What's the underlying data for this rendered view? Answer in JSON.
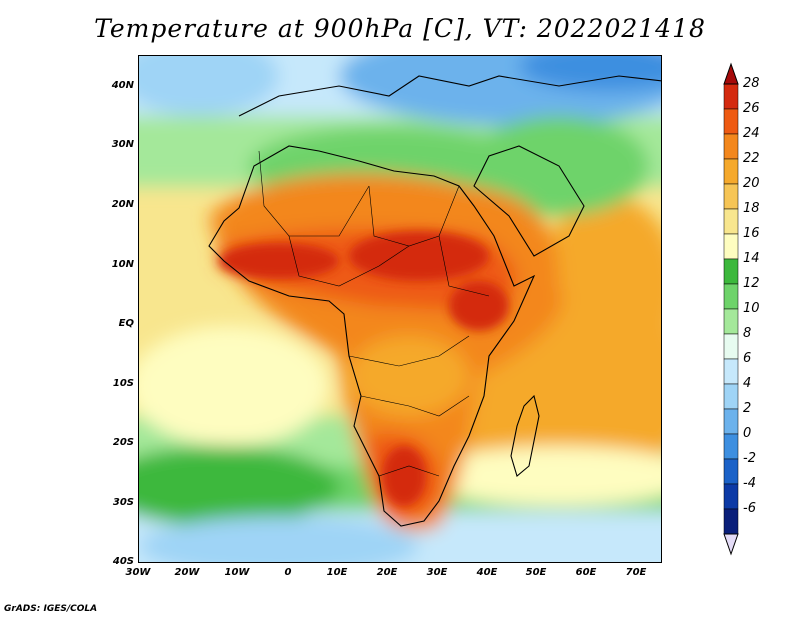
{
  "title": "Temperature at 900hPa [C], VT: 2022021418",
  "credit": "GrADS: IGES/COLA",
  "map": {
    "lat_labels": [
      "40N",
      "30N",
      "20N",
      "10N",
      "EQ",
      "10S",
      "20S",
      "30S",
      "40S"
    ],
    "lon_labels": [
      "30W",
      "20W",
      "10W",
      "0",
      "10E",
      "20E",
      "30E",
      "40E",
      "50E",
      "60E",
      "70E"
    ]
  },
  "colorbar": {
    "labels": [
      "28",
      "26",
      "24",
      "22",
      "20",
      "18",
      "16",
      "14",
      "12",
      "10",
      "8",
      "6",
      "4",
      "2",
      "0",
      "-2",
      "-4",
      "-6"
    ],
    "colors": [
      "#a50a0a",
      "#d42a0f",
      "#ee5a12",
      "#f3871c",
      "#f5a92c",
      "#f6c556",
      "#f8e68e",
      "#fefdc0",
      "#3cb83c",
      "#6ed36a",
      "#a4e89a",
      "#e7fbf0",
      "#c6e8fb",
      "#9fd4f6",
      "#6cb2ec",
      "#3d8fe0",
      "#1b62c8",
      "#0c3aa6",
      "#0a1f7a",
      "#e4dcf7"
    ]
  }
}
